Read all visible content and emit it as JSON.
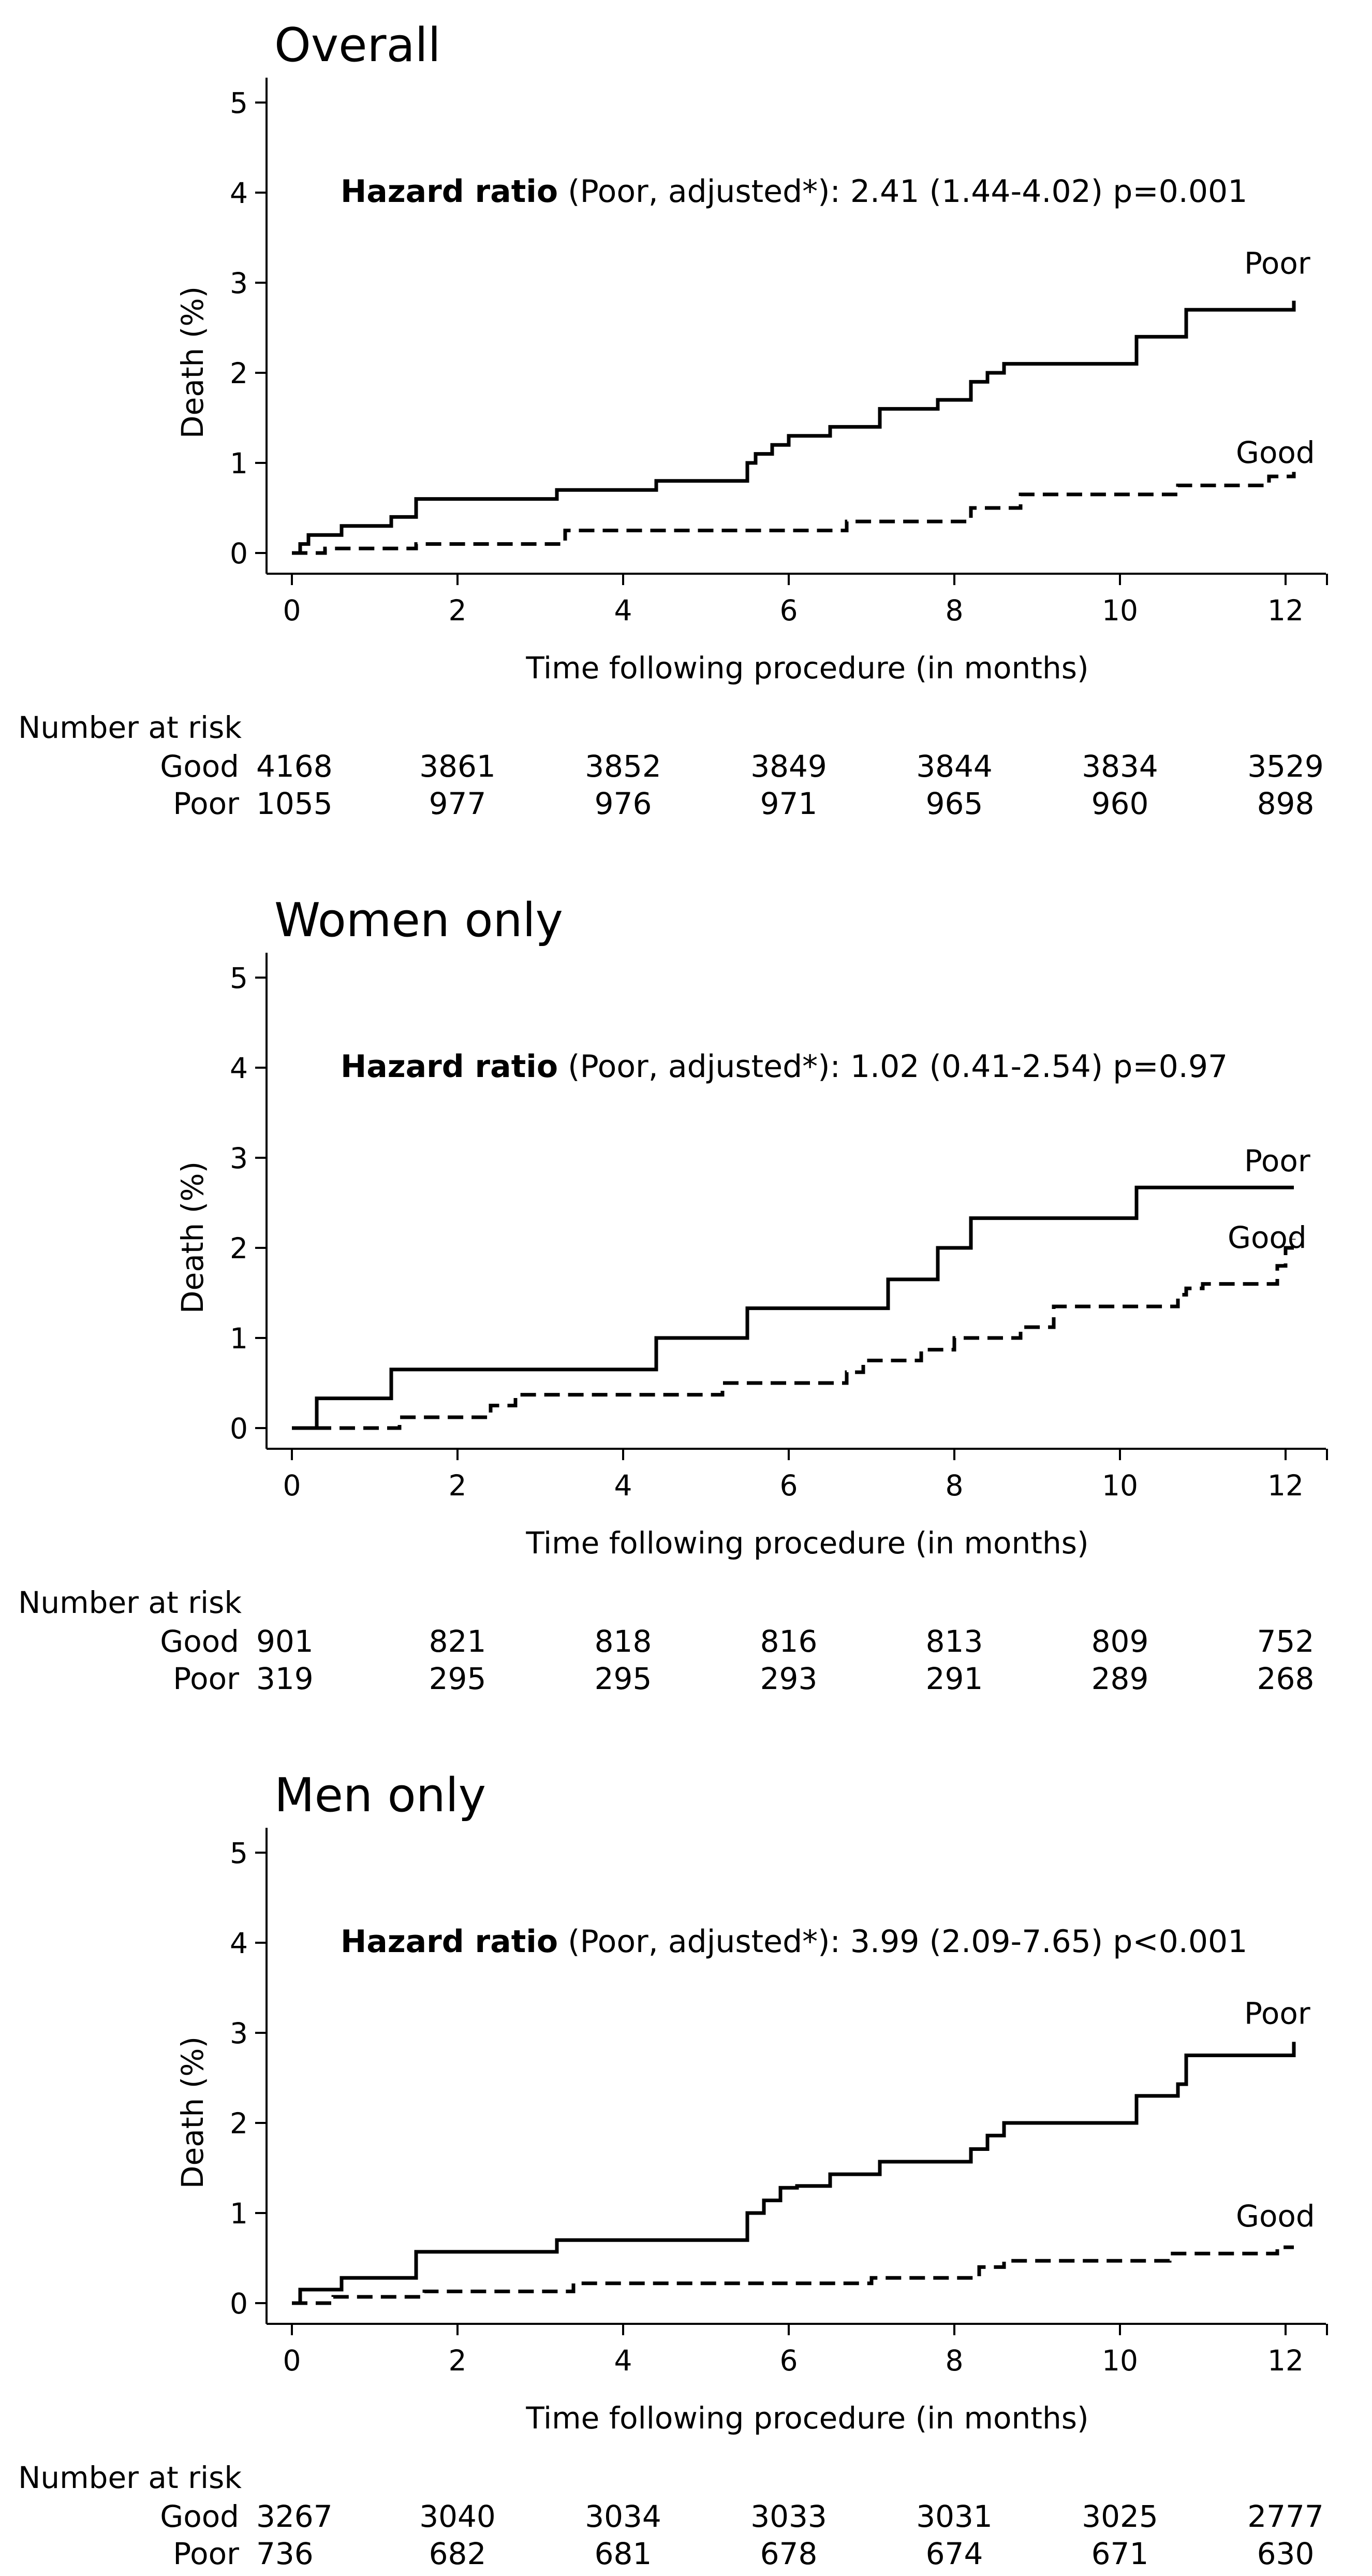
{
  "chart_data": [
    {
      "type": "line",
      "title": "Overall",
      "xlabel": "Time following procedure (in months)",
      "ylabel": "Death (%)",
      "xlim": [
        0,
        12.5
      ],
      "ylim": [
        0,
        5
      ],
      "xticks": [
        0,
        2,
        4,
        6,
        8,
        10,
        12
      ],
      "yticks": [
        0,
        1,
        2,
        3,
        4,
        5
      ],
      "grid": false,
      "annotation": {
        "bold": "Hazard ratio",
        "text": " (Poor, adjusted*): 2.41 (1.44-4.02) p=0.001"
      },
      "series": [
        {
          "name": "Poor",
          "style": "solid",
          "label_x": 11.5,
          "label_y": 3.1,
          "x": [
            0,
            0.1,
            0.2,
            0.6,
            1.2,
            1.5,
            3.2,
            4.4,
            5.5,
            5.6,
            5.8,
            6.0,
            6.5,
            7.1,
            7.8,
            8.2,
            8.4,
            8.6,
            10.2,
            10.8,
            12.1
          ],
          "y": [
            0,
            0.1,
            0.2,
            0.3,
            0.4,
            0.6,
            0.7,
            0.8,
            1.0,
            1.1,
            1.2,
            1.3,
            1.4,
            1.6,
            1.7,
            1.9,
            2.0,
            2.1,
            2.4,
            2.7,
            2.8
          ]
        },
        {
          "name": "Good",
          "style": "dashed",
          "label_x": 11.4,
          "label_y": 1.0,
          "x": [
            0,
            0.4,
            1.5,
            3.3,
            6.7,
            8.2,
            8.8,
            10.7,
            11.8,
            12.1
          ],
          "y": [
            0,
            0.05,
            0.1,
            0.25,
            0.35,
            0.5,
            0.65,
            0.75,
            0.85,
            0.9
          ]
        }
      ],
      "risk_table": {
        "header": "Number at risk",
        "rows": [
          {
            "label": "Good",
            "values": [
              "4168",
              "3861",
              "3852",
              "3849",
              "3844",
              "3834",
              "3529"
            ]
          },
          {
            "label": "Poor",
            "values": [
              "1055",
              "977",
              "976",
              "971",
              "965",
              "960",
              "898"
            ]
          }
        ]
      }
    },
    {
      "type": "line",
      "title": "Women only",
      "xlabel": "Time following procedure (in months)",
      "ylabel": "Death (%)",
      "xlim": [
        0,
        12.5
      ],
      "ylim": [
        0,
        5
      ],
      "xticks": [
        0,
        2,
        4,
        6,
        8,
        10,
        12
      ],
      "yticks": [
        0,
        1,
        2,
        3,
        4,
        5
      ],
      "grid": false,
      "annotation": {
        "bold": "Hazard ratio",
        "text": " (Poor, adjusted*): 1.02 (0.41-2.54) p=0.97"
      },
      "series": [
        {
          "name": "Poor",
          "style": "solid",
          "label_x": 11.5,
          "label_y": 2.85,
          "x": [
            0,
            0.3,
            1.2,
            4.4,
            5.5,
            7.2,
            7.8,
            8.2,
            10.2,
            12.1
          ],
          "y": [
            0,
            0.33,
            0.65,
            1.0,
            1.33,
            1.65,
            2.0,
            2.33,
            2.67,
            2.67
          ]
        },
        {
          "name": "Good",
          "style": "dashed",
          "label_x": 11.3,
          "label_y": 2.0,
          "x": [
            0,
            1.3,
            2.4,
            2.7,
            5.2,
            6.7,
            6.9,
            7.6,
            8.0,
            8.8,
            9.2,
            10.7,
            10.8,
            11.0,
            11.9,
            12.0,
            12.1
          ],
          "y": [
            0,
            0.12,
            0.25,
            0.37,
            0.5,
            0.62,
            0.75,
            0.87,
            1.0,
            1.12,
            1.35,
            1.48,
            1.55,
            1.6,
            1.8,
            2.0,
            2.1
          ]
        }
      ],
      "risk_table": {
        "header": "Number at risk",
        "rows": [
          {
            "label": "Good",
            "values": [
              "901",
              "821",
              "818",
              "816",
              "813",
              "809",
              "752"
            ]
          },
          {
            "label": "Poor",
            "values": [
              "319",
              "295",
              "295",
              "293",
              "291",
              "289",
              "268"
            ]
          }
        ]
      }
    },
    {
      "type": "line",
      "title": "Men only",
      "xlabel": "Time following procedure (in months)",
      "ylabel": "Death (%)",
      "xlim": [
        0,
        12.5
      ],
      "ylim": [
        0,
        5
      ],
      "xticks": [
        0,
        2,
        4,
        6,
        8,
        10,
        12
      ],
      "yticks": [
        0,
        1,
        2,
        3,
        4,
        5
      ],
      "grid": false,
      "annotation": {
        "bold": "Hazard ratio",
        "text": " (Poor, adjusted*): 3.99 (2.09-7.65) p<0.001"
      },
      "series": [
        {
          "name": "Poor",
          "style": "solid",
          "label_x": 11.5,
          "label_y": 3.1,
          "x": [
            0,
            0.1,
            0.6,
            1.5,
            3.2,
            5.5,
            5.7,
            5.9,
            6.1,
            6.5,
            7.1,
            8.2,
            8.4,
            8.6,
            10.2,
            10.7,
            10.8,
            12.1
          ],
          "y": [
            0,
            0.15,
            0.28,
            0.57,
            0.7,
            1.0,
            1.14,
            1.28,
            1.3,
            1.43,
            1.57,
            1.71,
            1.86,
            2.0,
            2.3,
            2.43,
            2.75,
            2.9
          ]
        },
        {
          "name": "Good",
          "style": "dashed",
          "label_x": 11.4,
          "label_y": 0.85,
          "x": [
            0,
            0.5,
            1.6,
            3.4,
            7.0,
            8.3,
            8.6,
            10.6,
            11.9,
            12.1
          ],
          "y": [
            0,
            0.07,
            0.13,
            0.22,
            0.28,
            0.4,
            0.47,
            0.55,
            0.62,
            0.62
          ]
        }
      ],
      "risk_table": {
        "header": "Number at risk",
        "rows": [
          {
            "label": "Good",
            "values": [
              "3267",
              "3040",
              "3034",
              "3033",
              "3031",
              "3025",
              "2777"
            ]
          },
          {
            "label": "Poor",
            "values": [
              "736",
              "682",
              "681",
              "678",
              "674",
              "671",
              "630"
            ]
          }
        ]
      }
    }
  ]
}
